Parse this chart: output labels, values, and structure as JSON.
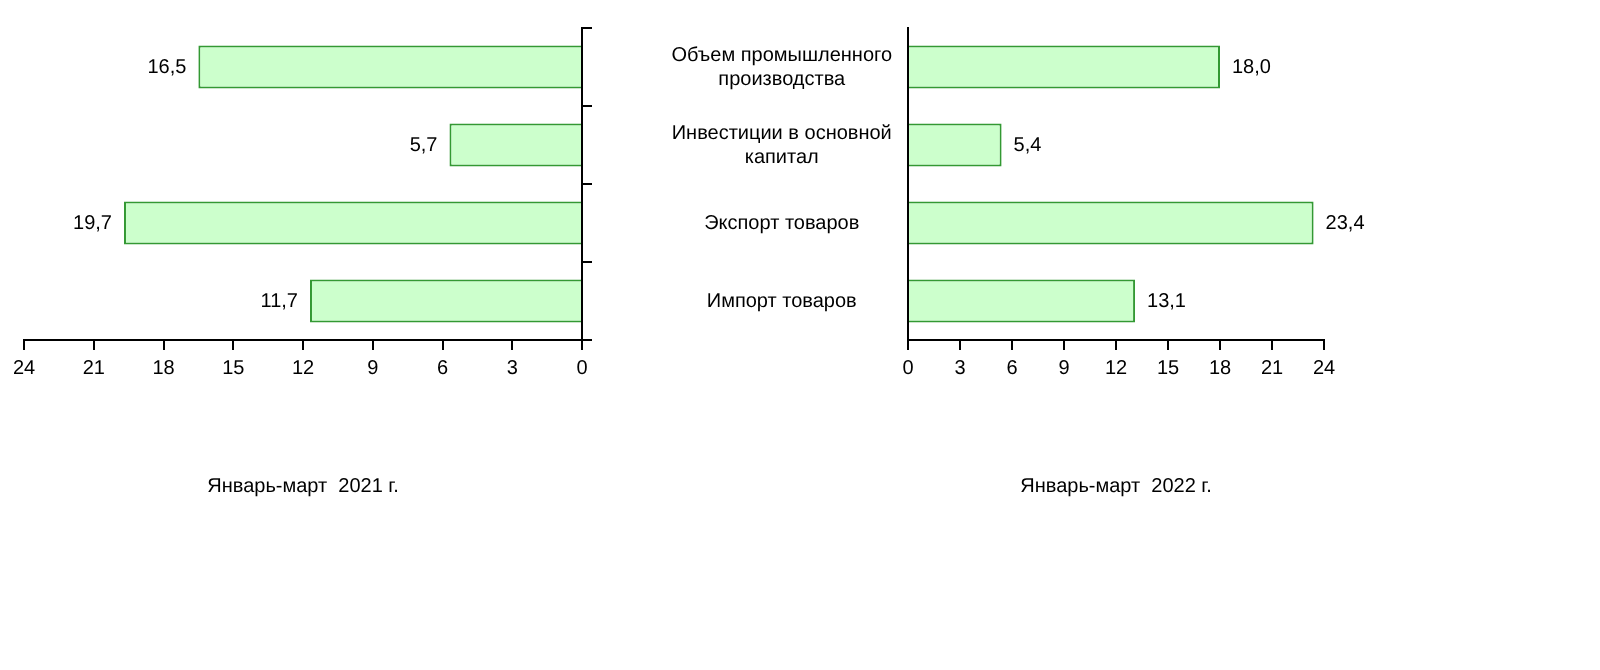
{
  "chart_data": [
    {
      "type": "bar",
      "orientation": "horizontal",
      "xlabel": "Январь-март  2021 г.",
      "categories": [
        null,
        null,
        null,
        null
      ],
      "values": [
        16.5,
        5.7,
        19.7,
        11.7
      ],
      "value_labels": [
        "16,5",
        "5,7",
        "19,7",
        "11,7"
      ],
      "color": "#ccffcc",
      "xlim": [
        24,
        0
      ],
      "xticks": [
        24,
        21,
        18,
        15,
        12,
        9,
        6,
        3,
        0
      ],
      "grid": false,
      "legend": false,
      "tick_labels": "x"
    },
    {
      "type": "bar",
      "orientation": "horizontal",
      "xlabel": "Январь-март  2022 г.",
      "categories": [
        "Объем промышленного производства",
        "Инвестиции в основной капитал",
        "Экспорт товаров",
        "Импорт товаров"
      ],
      "values": [
        18.0,
        5.4,
        23.4,
        13.1
      ],
      "value_labels": [
        "18,0",
        "5,4",
        "23,4",
        "13,1"
      ],
      "color": "#ccffcc",
      "xlim": [
        0,
        24
      ],
      "xticks": [
        0,
        3,
        6,
        9,
        12,
        15,
        18,
        21,
        24
      ],
      "grid": false,
      "legend": false
    }
  ]
}
